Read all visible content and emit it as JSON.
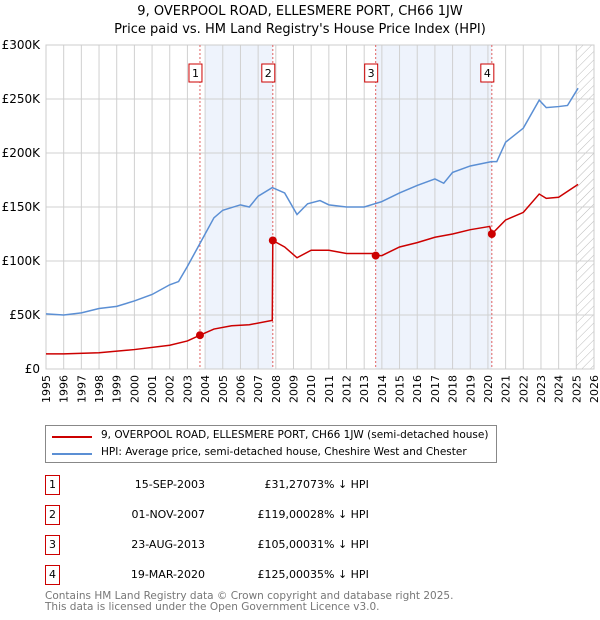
{
  "title": "9, OVERPOOL ROAD, ELLESMERE PORT, CH66 1JW",
  "subtitle": "Price paid vs. HM Land Registry's House Price Index (HPI)",
  "chart_data": {
    "type": "line",
    "xlim": [
      1995,
      2026
    ],
    "ylim": [
      0,
      300000
    ],
    "yticks": [
      {
        "v": 0,
        "label": "£0"
      },
      {
        "v": 50000,
        "label": "£50K"
      },
      {
        "v": 100000,
        "label": "£100K"
      },
      {
        "v": 150000,
        "label": "£150K"
      },
      {
        "v": 200000,
        "label": "£200K"
      },
      {
        "v": 250000,
        "label": "£250K"
      },
      {
        "v": 300000,
        "label": "£300K"
      }
    ],
    "xticks": [
      1995,
      1996,
      1997,
      1998,
      1999,
      2000,
      2001,
      2002,
      2003,
      2004,
      2005,
      2006,
      2007,
      2008,
      2009,
      2010,
      2011,
      2012,
      2013,
      2014,
      2015,
      2016,
      2017,
      2018,
      2019,
      2020,
      2021,
      2022,
      2023,
      2024,
      2025,
      2026
    ],
    "series": [
      {
        "name": "9, OVERPOOL ROAD, ELLESMERE PORT, CH66 1JW (semi-detached house)",
        "color": "#cc0000",
        "points": [
          [
            1995,
            14000
          ],
          [
            1996,
            14000
          ],
          [
            1998,
            15000
          ],
          [
            2000,
            18000
          ],
          [
            2002,
            22000
          ],
          [
            2003,
            26000
          ],
          [
            2003.71,
            31270
          ],
          [
            2004.5,
            37000
          ],
          [
            2005.5,
            40000
          ],
          [
            2006.5,
            41000
          ],
          [
            2007.8,
            45000
          ],
          [
            2007.83,
            119000
          ],
          [
            2008.5,
            113000
          ],
          [
            2009.2,
            103000
          ],
          [
            2010,
            110000
          ],
          [
            2011,
            110000
          ],
          [
            2012,
            107000
          ],
          [
            2013.5,
            107000
          ],
          [
            2013.65,
            105000
          ],
          [
            2014,
            105000
          ],
          [
            2015,
            113000
          ],
          [
            2016,
            117000
          ],
          [
            2017,
            122000
          ],
          [
            2018,
            125000
          ],
          [
            2019,
            129000
          ],
          [
            2020.1,
            132000
          ],
          [
            2020.22,
            125000
          ],
          [
            2021,
            138000
          ],
          [
            2022,
            145000
          ],
          [
            2022.9,
            162000
          ],
          [
            2023.3,
            158000
          ],
          [
            2024,
            159000
          ],
          [
            2025.1,
            171000
          ]
        ]
      },
      {
        "name": "HPI: Average price, semi-detached house, Cheshire West and Chester",
        "color": "#5b8fd4",
        "points": [
          [
            1995,
            51000
          ],
          [
            1996,
            50000
          ],
          [
            1997,
            52000
          ],
          [
            1998,
            56000
          ],
          [
            1999,
            58000
          ],
          [
            2000,
            63000
          ],
          [
            2001,
            69000
          ],
          [
            2002,
            78000
          ],
          [
            2002.5,
            81000
          ],
          [
            2003,
            95000
          ],
          [
            2003.7,
            116000
          ],
          [
            2004,
            125000
          ],
          [
            2004.5,
            140000
          ],
          [
            2005,
            147000
          ],
          [
            2006,
            152000
          ],
          [
            2006.5,
            150000
          ],
          [
            2007,
            160000
          ],
          [
            2007.8,
            168000
          ],
          [
            2008.5,
            163000
          ],
          [
            2009.2,
            143000
          ],
          [
            2009.8,
            153000
          ],
          [
            2010.5,
            156000
          ],
          [
            2011,
            152000
          ],
          [
            2012,
            150000
          ],
          [
            2013,
            150000
          ],
          [
            2014,
            155000
          ],
          [
            2015,
            163000
          ],
          [
            2016,
            170000
          ],
          [
            2017,
            176000
          ],
          [
            2017.5,
            172000
          ],
          [
            2018,
            182000
          ],
          [
            2019,
            188000
          ],
          [
            2020.2,
            192000
          ],
          [
            2020.5,
            192000
          ],
          [
            2021,
            210000
          ],
          [
            2022,
            223000
          ],
          [
            2022.9,
            249000
          ],
          [
            2023.3,
            242000
          ],
          [
            2024,
            243000
          ],
          [
            2024.5,
            244000
          ],
          [
            2025.1,
            260000
          ]
        ]
      }
    ],
    "sales": [
      {
        "n": "1",
        "x": 2003.71,
        "y": 31270
      },
      {
        "n": "2",
        "x": 2007.83,
        "y": 119000
      },
      {
        "n": "3",
        "x": 2013.65,
        "y": 105000
      },
      {
        "n": "4",
        "x": 2020.22,
        "y": 125000
      }
    ],
    "shaded": [
      [
        2004.0,
        2007.83
      ],
      [
        2013.65,
        2020.22
      ]
    ],
    "forecast_from": 2025.0
  },
  "transactions": [
    {
      "n": "1",
      "date": "15-SEP-2003",
      "price": "£31,270",
      "hpi": "73% ↓ HPI"
    },
    {
      "n": "2",
      "date": "01-NOV-2007",
      "price": "£119,000",
      "hpi": "28% ↓ HPI"
    },
    {
      "n": "3",
      "date": "23-AUG-2013",
      "price": "£105,000",
      "hpi": "31% ↓ HPI"
    },
    {
      "n": "4",
      "date": "19-MAR-2020",
      "price": "£125,000",
      "hpi": "35% ↓ HPI"
    }
  ],
  "footer": [
    "Contains HM Land Registry data © Crown copyright and database right 2025.",
    "This data is licensed under the Open Government Licence v3.0."
  ]
}
